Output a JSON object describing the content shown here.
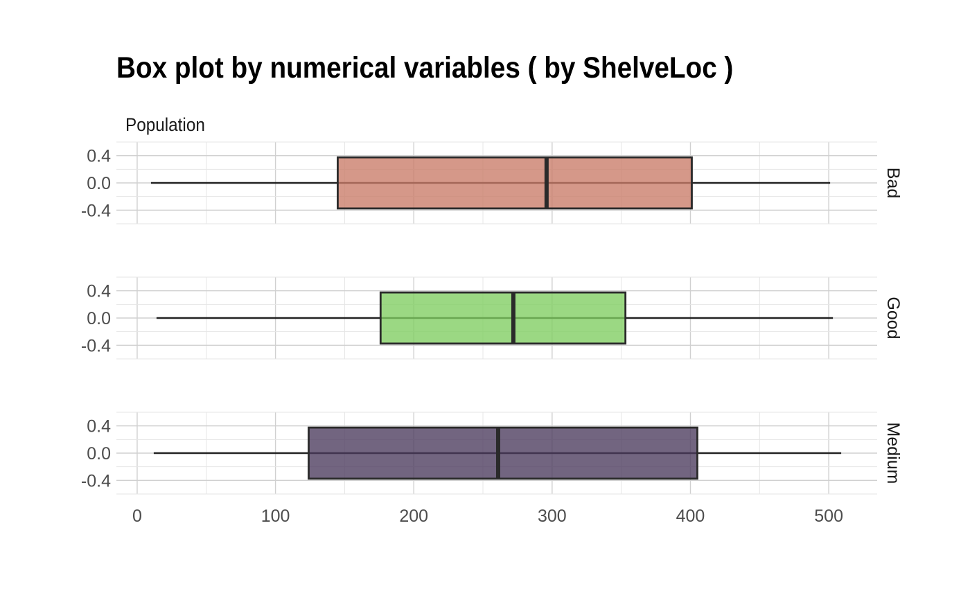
{
  "chart_data": {
    "type": "boxplot",
    "title": "Box plot by numerical variables ( by ShelveLoc )",
    "subtitle": "Population",
    "xlim": [
      -15,
      535
    ],
    "x_ticks": [
      0,
      100,
      200,
      300,
      400,
      500
    ],
    "ylim": [
      -0.6,
      0.6
    ],
    "y_ticks": [
      0.4,
      0.0,
      -0.4
    ],
    "y_tick_labels": [
      "0.4",
      "0.0",
      "-0.4"
    ],
    "grid": true,
    "facets": [
      {
        "name": "Bad",
        "color": "#c97b68",
        "min": 10,
        "q1": 145,
        "median": 296,
        "q3": 401,
        "max": 501
      },
      {
        "name": "Good",
        "color": "#7fcd60",
        "min": 14,
        "q1": 176,
        "median": 272,
        "q3": 353,
        "max": 503
      },
      {
        "name": "Medium",
        "color": "#4a3a5c",
        "min": 12,
        "q1": 124,
        "median": 261,
        "q3": 405,
        "max": 509
      }
    ]
  }
}
